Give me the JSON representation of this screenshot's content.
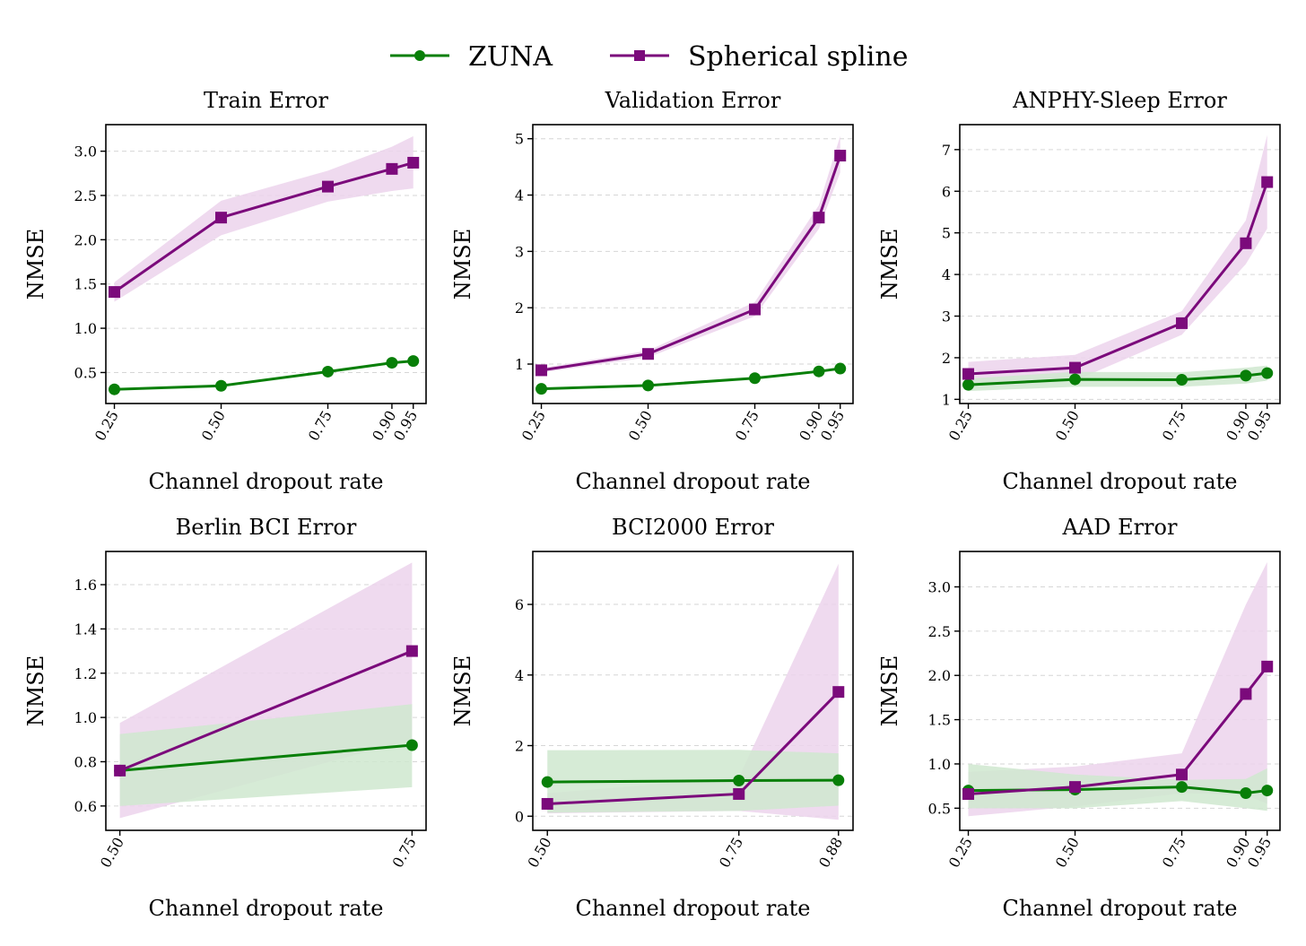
{
  "legend": [
    {
      "name": "ZUNA",
      "color": "#087f08",
      "marker": "circle"
    },
    {
      "name": "Spherical spline",
      "color": "#7b0a7b",
      "marker": "square"
    }
  ],
  "band_colors": {
    "ZUNA": "#cfe8cf",
    "Spherical spline": "#ecd3ec"
  },
  "chart_data": [
    {
      "type": "line",
      "title": "Train Error",
      "xlabel": "Channel dropout rate",
      "ylabel": "NMSE",
      "x": [
        0.25,
        0.5,
        0.75,
        0.9,
        0.95
      ],
      "x_ticks": [
        "0.25",
        "0.50",
        "0.75",
        "0.90",
        "0.95"
      ],
      "xlim": [
        0.23,
        0.98
      ],
      "ylim": [
        0.15,
        3.3
      ],
      "y_ticks": [
        "0.5",
        "1.0",
        "1.5",
        "2.0",
        "2.5",
        "3.0"
      ],
      "y_tick_values": [
        0.5,
        1.0,
        1.5,
        2.0,
        2.5,
        3.0
      ],
      "grid": true,
      "series": [
        {
          "name": "ZUNA",
          "values": [
            0.31,
            0.35,
            0.51,
            0.61,
            0.63
          ],
          "lower": [
            0.3,
            0.34,
            0.5,
            0.6,
            0.62
          ],
          "upper": [
            0.32,
            0.36,
            0.52,
            0.62,
            0.64
          ]
        },
        {
          "name": "Spherical spline",
          "values": [
            1.41,
            2.25,
            2.6,
            2.8,
            2.87
          ],
          "lower": [
            1.3,
            2.05,
            2.43,
            2.55,
            2.58
          ],
          "upper": [
            1.52,
            2.44,
            2.78,
            3.05,
            3.17
          ]
        }
      ]
    },
    {
      "type": "line",
      "title": "Validation Error",
      "xlabel": "Channel dropout rate",
      "ylabel": "NMSE",
      "x": [
        0.25,
        0.5,
        0.75,
        0.9,
        0.95
      ],
      "x_ticks": [
        "0.25",
        "0.50",
        "0.75",
        "0.90",
        "0.95"
      ],
      "xlim": [
        0.23,
        0.98
      ],
      "ylim": [
        0.3,
        5.25
      ],
      "y_ticks": [
        "1",
        "2",
        "3",
        "4",
        "5"
      ],
      "y_tick_values": [
        1,
        2,
        3,
        4,
        5
      ],
      "grid": true,
      "series": [
        {
          "name": "ZUNA",
          "values": [
            0.56,
            0.62,
            0.75,
            0.87,
            0.92
          ],
          "lower": [
            0.54,
            0.6,
            0.73,
            0.85,
            0.9
          ],
          "upper": [
            0.58,
            0.64,
            0.77,
            0.89,
            0.94
          ]
        },
        {
          "name": "Spherical spline",
          "values": [
            0.89,
            1.18,
            1.97,
            3.6,
            4.7
          ],
          "lower": [
            0.85,
            1.12,
            1.85,
            3.4,
            4.4
          ],
          "upper": [
            0.93,
            1.24,
            2.1,
            3.82,
            5.05
          ]
        }
      ]
    },
    {
      "type": "line",
      "title": "ANPHY-Sleep Error",
      "xlabel": "Channel dropout rate",
      "ylabel": "NMSE",
      "x": [
        0.25,
        0.5,
        0.75,
        0.9,
        0.95
      ],
      "x_ticks": [
        "0.25",
        "0.50",
        "0.75",
        "0.90",
        "0.95"
      ],
      "xlim": [
        0.23,
        0.98
      ],
      "ylim": [
        0.9,
        7.6
      ],
      "y_ticks": [
        "1",
        "2",
        "3",
        "4",
        "5",
        "6",
        "7"
      ],
      "y_tick_values": [
        1,
        2,
        3,
        4,
        5,
        6,
        7
      ],
      "grid": true,
      "series": [
        {
          "name": "ZUNA",
          "values": [
            1.35,
            1.48,
            1.47,
            1.57,
            1.63
          ],
          "lower": [
            1.2,
            1.3,
            1.3,
            1.38,
            1.45
          ],
          "upper": [
            1.5,
            1.66,
            1.65,
            1.76,
            1.81
          ]
        },
        {
          "name": "Spherical spline",
          "values": [
            1.61,
            1.76,
            2.83,
            4.75,
            6.22
          ],
          "lower": [
            1.3,
            1.45,
            2.55,
            4.25,
            5.1
          ],
          "upper": [
            1.9,
            2.07,
            3.12,
            5.3,
            7.35
          ]
        }
      ]
    },
    {
      "type": "line",
      "title": "Berlin BCI Error",
      "xlabel": "Channel dropout rate",
      "ylabel": "NMSE",
      "x": [
        0.5,
        0.75
      ],
      "x_ticks": [
        "0.50",
        "0.75"
      ],
      "xlim": [
        0.488,
        0.762
      ],
      "ylim": [
        0.49,
        1.75
      ],
      "y_ticks": [
        "0.6",
        "0.8",
        "1.0",
        "1.2",
        "1.4",
        "1.6"
      ],
      "y_tick_values": [
        0.6,
        0.8,
        1.0,
        1.2,
        1.4,
        1.6
      ],
      "grid": true,
      "series": [
        {
          "name": "ZUNA",
          "values": [
            0.76,
            0.875
          ],
          "lower": [
            0.6,
            0.685
          ],
          "upper": [
            0.925,
            1.06
          ]
        },
        {
          "name": "Spherical spline",
          "values": [
            0.76,
            1.3
          ],
          "lower": [
            0.545,
            0.9
          ],
          "upper": [
            0.975,
            1.7
          ]
        }
      ]
    },
    {
      "type": "line",
      "title": "BCI2000 Error",
      "xlabel": "Channel dropout rate",
      "ylabel": "NMSE",
      "x": [
        0.5,
        0.75,
        0.88
      ],
      "x_ticks": [
        "0.50",
        "0.75",
        "0.88"
      ],
      "xlim": [
        0.481,
        0.899
      ],
      "ylim": [
        -0.4,
        7.5
      ],
      "y_ticks": [
        "0",
        "2",
        "4",
        "6"
      ],
      "y_tick_values": [
        0,
        2,
        4,
        6
      ],
      "grid": true,
      "series": [
        {
          "name": "ZUNA",
          "values": [
            0.97,
            1.01,
            1.02
          ],
          "lower": [
            0.1,
            0.15,
            0.3
          ],
          "upper": [
            1.87,
            1.88,
            1.78
          ]
        },
        {
          "name": "Spherical spline",
          "values": [
            0.35,
            0.63,
            3.52
          ],
          "lower": [
            0.08,
            0.15,
            -0.1
          ],
          "upper": [
            0.65,
            1.1,
            7.15
          ]
        }
      ]
    },
    {
      "type": "line",
      "title": "AAD Error",
      "xlabel": "Channel dropout rate",
      "ylabel": "NMSE",
      "x": [
        0.25,
        0.5,
        0.75,
        0.9,
        0.95
      ],
      "x_ticks": [
        "0.25",
        "0.50",
        "0.75",
        "0.90",
        "0.95"
      ],
      "xlim": [
        0.23,
        0.98
      ],
      "ylim": [
        0.25,
        3.4
      ],
      "y_ticks": [
        "0.5",
        "1.0",
        "1.5",
        "2.0",
        "2.5",
        "3.0"
      ],
      "y_tick_values": [
        0.5,
        1.0,
        1.5,
        2.0,
        2.5,
        3.0
      ],
      "grid": true,
      "series": [
        {
          "name": "ZUNA",
          "values": [
            0.7,
            0.71,
            0.74,
            0.67,
            0.7
          ],
          "lower": [
            0.5,
            0.5,
            0.58,
            0.5,
            0.47
          ],
          "upper": [
            1.0,
            0.88,
            0.82,
            0.83,
            0.95
          ]
        },
        {
          "name": "Spherical spline",
          "values": [
            0.66,
            0.74,
            0.88,
            1.79,
            2.1
          ],
          "lower": [
            0.41,
            0.52,
            0.67,
            0.65,
            0.55
          ],
          "upper": [
            0.91,
            0.97,
            1.12,
            2.8,
            3.28
          ]
        }
      ]
    }
  ]
}
